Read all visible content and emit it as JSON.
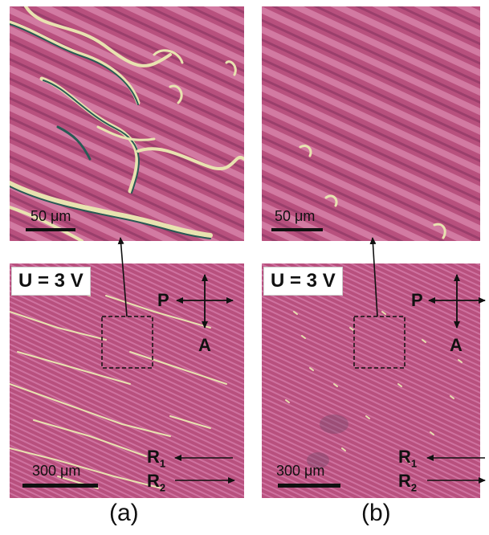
{
  "figure": {
    "panel_a": {
      "zoom_scale_label": "50 μm",
      "wide_scale_label": "300 μm",
      "voltage_label": "U = 3 V",
      "polarizer_label": "P",
      "analyzer_label": "A",
      "r1_label": "R",
      "r1_sub": "1",
      "r2_label": "R",
      "r2_sub": "2",
      "caption": "(a)"
    },
    "panel_b": {
      "zoom_scale_label": "50 μm",
      "wide_scale_label": "300 μm",
      "voltage_label": "U = 3 V",
      "polarizer_label": "P",
      "analyzer_label": "A",
      "r1_label": "R",
      "r1_sub": "1",
      "r2_label": "R",
      "r2_sub": "2",
      "caption": "(b)"
    },
    "colors": {
      "texture_base": "#b8507e",
      "stripe_light": "#d27aa2",
      "stripe_dark": "#9a3f6c",
      "defect_light": "#e8e2b0",
      "defect_dark": "#2a5a55"
    }
  }
}
